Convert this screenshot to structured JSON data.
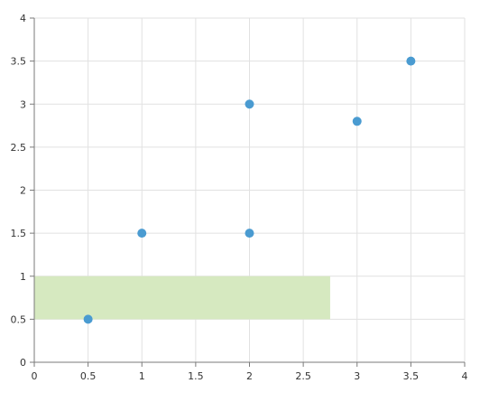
{
  "chart_data": {
    "type": "scatter",
    "title": "",
    "xlabel": "",
    "ylabel": "",
    "xlim": [
      0,
      4
    ],
    "ylim": [
      0,
      4
    ],
    "grid": true,
    "x_ticks": [
      "0",
      "0.5",
      "1",
      "1.5",
      "2",
      "2.5",
      "3",
      "3.5",
      "4"
    ],
    "y_ticks": [
      "0",
      "0.5",
      "1",
      "1.5",
      "2",
      "2.5",
      "3",
      "3.5",
      "4"
    ],
    "series": [
      {
        "points": [
          {
            "x": 0.5,
            "y": 0.5
          },
          {
            "x": 1,
            "y": 1.5
          },
          {
            "x": 2,
            "y": 1.5
          },
          {
            "x": 2,
            "y": 3
          },
          {
            "x": 3,
            "y": 2.8
          },
          {
            "x": 3.5,
            "y": 3.5
          }
        ]
      }
    ],
    "highlight_band": {
      "x_from": 0,
      "x_to": 2.75,
      "y_from": 0.5,
      "y_to": 1
    },
    "colors": {
      "point": "#4a9bd1",
      "band": "#d6e9c0",
      "grid": "#e1e1e1",
      "axis": "#7a7a7a",
      "text": "#333333"
    }
  }
}
